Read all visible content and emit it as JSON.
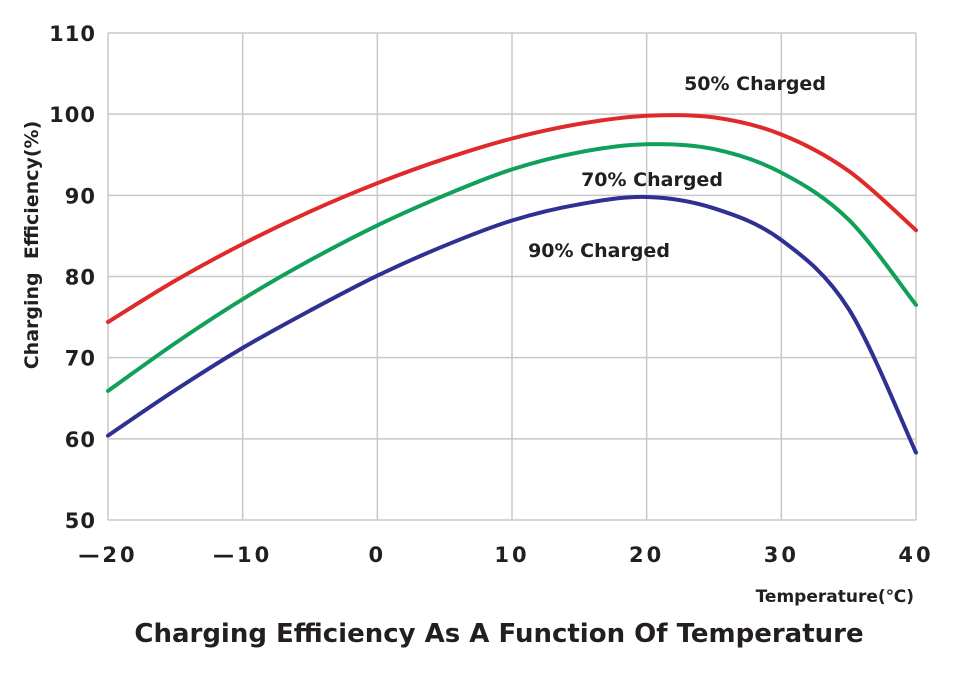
{
  "chart_data": {
    "type": "line",
    "title": "Charging Efficiency As A Function Of Temperature",
    "xlabel": "Temperature(℃)",
    "ylabel": "Charging  Efficiency(%)",
    "xlim": [
      -20,
      40
    ],
    "ylim": [
      50,
      110
    ],
    "grid": true,
    "x_ticks": [
      -20,
      -10,
      0,
      10,
      20,
      30,
      40
    ],
    "x_tick_labels": [
      "—20",
      "—10",
      "0",
      "10",
      "20",
      "30",
      "40"
    ],
    "y_ticks": [
      50,
      60,
      70,
      80,
      90,
      100,
      110
    ],
    "y_tick_labels": [
      "50",
      "60",
      "70",
      "80",
      "90",
      "100",
      "110"
    ],
    "x": [
      -20,
      -15,
      -10,
      -5,
      0,
      5,
      10,
      15,
      20,
      25,
      30,
      35,
      40
    ],
    "series": [
      {
        "name": "50% Charged",
        "color": "#e02a2a",
        "values": [
          74.4,
          79.5,
          84.0,
          88.0,
          91.5,
          94.5,
          97.0,
          98.8,
          99.8,
          99.6,
          97.5,
          93.0,
          85.7
        ]
      },
      {
        "name": "70% Charged",
        "color": "#10a05a",
        "values": [
          65.9,
          71.8,
          77.2,
          82.0,
          86.3,
          90.0,
          93.2,
          95.3,
          96.3,
          95.7,
          92.8,
          87.0,
          76.5
        ]
      },
      {
        "name": "90% Charged",
        "color": "#2e3192",
        "values": [
          60.4,
          66.0,
          71.2,
          75.8,
          80.1,
          83.8,
          86.9,
          88.9,
          89.8,
          88.4,
          84.5,
          76.0,
          58.3
        ]
      }
    ]
  }
}
